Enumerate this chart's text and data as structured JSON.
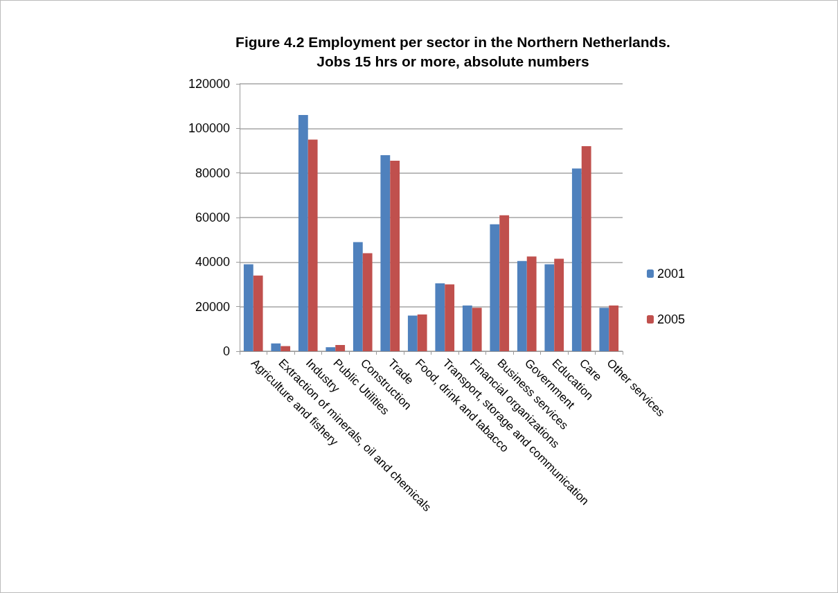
{
  "chart_data": {
    "type": "bar",
    "title": "Figure 4.2 Employment per sector in the Northern Netherlands.\nJobs 15 hrs or more, absolute numbers",
    "categories": [
      "Agriculture and fishery",
      "Extraction of minerals, oil and chemicals",
      "Industry",
      "Public Utilities",
      "Construction",
      "Trade",
      "Food, drink and tabacco",
      "Transport, storage and communication",
      "Financial organizations",
      "Business services",
      "Government",
      "Education",
      "Care",
      "Other services"
    ],
    "series": [
      {
        "name": "2001",
        "color": "#4f81bd",
        "values": [
          39000,
          3500,
          106000,
          1800,
          49000,
          88000,
          16000,
          30500,
          20500,
          57000,
          40500,
          39000,
          82000,
          19500
        ]
      },
      {
        "name": "2005",
        "color": "#c0504d",
        "values": [
          34000,
          2300,
          95000,
          2800,
          44000,
          85500,
          16500,
          30000,
          19500,
          61000,
          42500,
          41500,
          92000,
          20500
        ]
      }
    ],
    "ylim": [
      0,
      120000
    ],
    "yticks": [
      0,
      20000,
      40000,
      60000,
      80000,
      100000,
      120000
    ],
    "grid": "y",
    "legend": "right"
  }
}
